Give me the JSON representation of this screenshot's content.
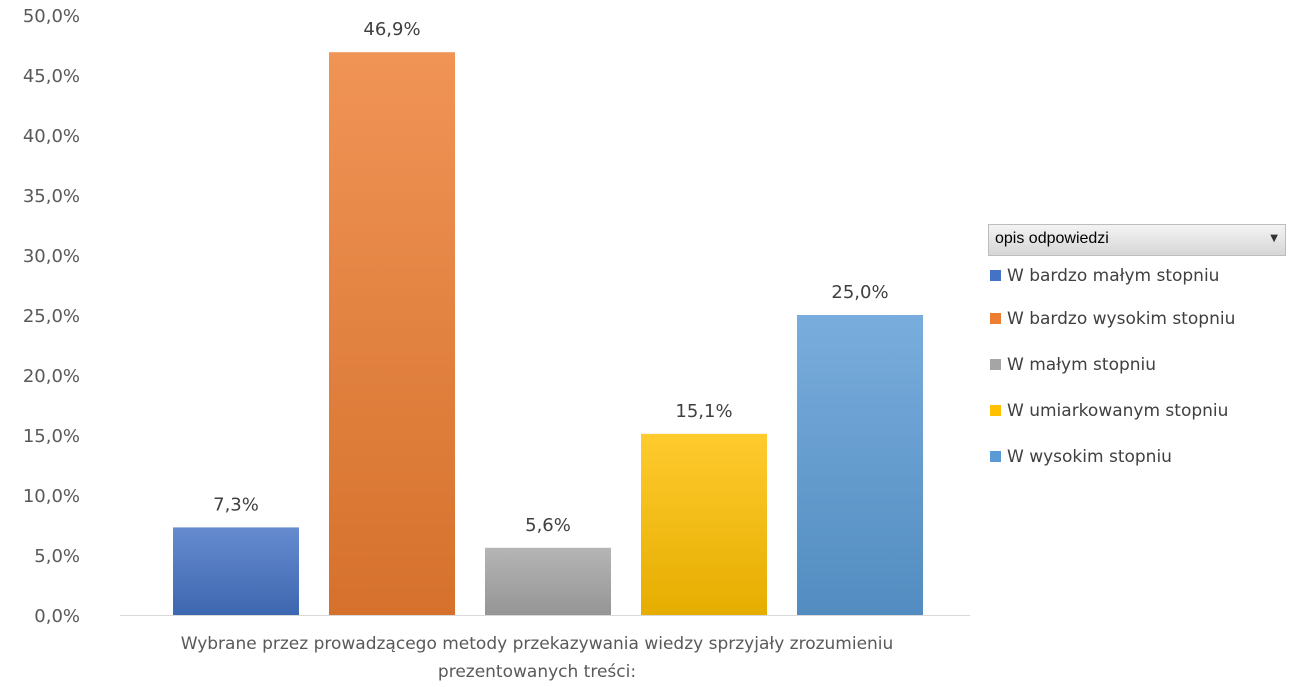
{
  "chart_data": {
    "type": "bar",
    "xlabel_lines": [
      "Wybrane przez prowadzącego metody przekazywania wiedzy sprzyjały zrozumieniu",
      "prezentowanych treści:"
    ],
    "ylim": [
      0,
      50
    ],
    "y_ticks": [
      "0,0%",
      "5,0%",
      "10,0%",
      "15,0%",
      "20,0%",
      "25,0%",
      "30,0%",
      "35,0%",
      "40,0%",
      "45,0%",
      "50,0%"
    ],
    "grid": false,
    "legend_position": "right",
    "series": [
      {
        "name": "W bardzo małym stopniu",
        "value": 7.3,
        "label": "7,3%",
        "color": "#4472c4"
      },
      {
        "name": "W bardzo wysokim stopniu",
        "value": 46.9,
        "label": "46,9%",
        "color": "#ed7d31"
      },
      {
        "name": "W małym stopniu",
        "value": 5.6,
        "label": "5,6%",
        "color": "#a5a5a5"
      },
      {
        "name": "W umiarkowanym stopniu",
        "value": 15.1,
        "label": "15,1%",
        "color": "#ffc000"
      },
      {
        "name": "W wysokim stopniu",
        "value": 25.0,
        "label": "25,0%",
        "color": "#5b9bd5"
      }
    ]
  },
  "legend": {
    "header": "opis odpowiedzi",
    "dropdown_icon": "chevron-down-icon"
  }
}
